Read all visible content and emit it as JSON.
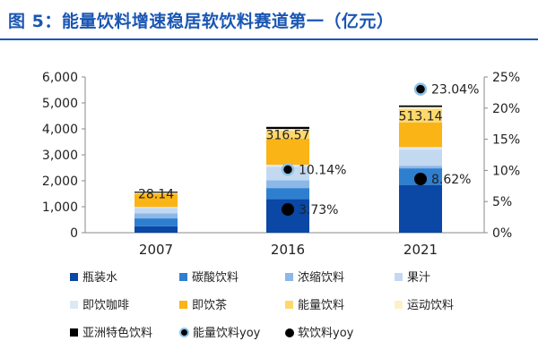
{
  "title": "图 5：能量饮料增速稳居软饮料赛道第一（亿元）",
  "chart_data": {
    "type": "bar",
    "stacked": true,
    "categories": [
      "2007",
      "2016",
      "2021"
    ],
    "ylim": [
      0,
      6000
    ],
    "yticks": [
      "0",
      "1,000",
      "2,000",
      "3,000",
      "4,000",
      "5,000",
      "6,000"
    ],
    "y2lim": [
      0,
      25
    ],
    "y2ticks": [
      "0%",
      "5%",
      "10%",
      "15%",
      "20%",
      "25%"
    ],
    "series": [
      {
        "name": "瓶装水",
        "color": "#0b47a5",
        "values": [
          250,
          1300,
          1840
        ]
      },
      {
        "name": "碳酸饮料",
        "color": "#2f7fd0",
        "values": [
          300,
          420,
          640
        ]
      },
      {
        "name": "浓缩饮料",
        "color": "#8bb8e8",
        "values": [
          200,
          300,
          100
        ]
      },
      {
        "name": "果汁",
        "color": "#c3d9f1",
        "values": [
          200,
          520,
          620
        ]
      },
      {
        "name": "即饮咖啡",
        "color": "#dde8f5",
        "values": [
          40,
          80,
          100
        ]
      },
      {
        "name": "即饮茶",
        "color": "#fbb415",
        "values": [
          500,
          1000,
          950
        ]
      },
      {
        "name": "能量饮料",
        "color": "#fdd86d",
        "values": [
          28.14,
          316.57,
          513.14
        ]
      },
      {
        "name": "运动饮料",
        "color": "#fdf1c9",
        "values": [
          20,
          60,
          80
        ]
      },
      {
        "name": "亚洲特色饮料",
        "color": "#000000",
        "values": [
          40,
          80,
          60
        ]
      }
    ],
    "bar_labels": [
      "28.14",
      "316.57",
      "513.14"
    ],
    "lines": [
      {
        "name": "能量饮料yoy",
        "marker": "ring",
        "values": [
          null,
          10.14,
          23.04
        ],
        "labels": [
          "",
          "10.14%",
          "23.04%"
        ]
      },
      {
        "name": "软饮料yoy",
        "marker": "dot",
        "values": [
          null,
          3.73,
          8.62
        ],
        "labels": [
          "",
          "3.73%",
          "8.62%"
        ]
      }
    ]
  },
  "legend": [
    {
      "label": "瓶装水",
      "kind": "square",
      "color": "#0b47a5"
    },
    {
      "label": "碳酸饮料",
      "kind": "square",
      "color": "#2f7fd0"
    },
    {
      "label": "浓缩饮料",
      "kind": "square",
      "color": "#8bb8e8"
    },
    {
      "label": "果汁",
      "kind": "square",
      "color": "#c3d9f1"
    },
    {
      "label": "即饮咖啡",
      "kind": "square",
      "color": "#dde8f5"
    },
    {
      "label": "即饮茶",
      "kind": "square",
      "color": "#fbb415"
    },
    {
      "label": "能量饮料",
      "kind": "square",
      "color": "#fdd86d"
    },
    {
      "label": "运动饮料",
      "kind": "square",
      "color": "#fdf1c9"
    },
    {
      "label": "亚洲特色饮料",
      "kind": "square",
      "color": "#000000"
    },
    {
      "label": "能量饮料yoy",
      "kind": "ring"
    },
    {
      "label": "软饮料yoy",
      "kind": "dot"
    }
  ]
}
